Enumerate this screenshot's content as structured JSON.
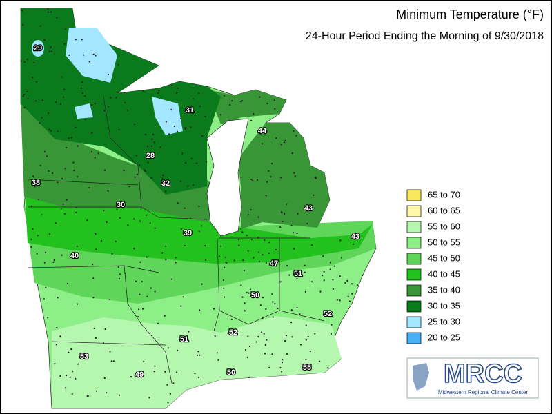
{
  "title": "Minimum Temperature (°F)",
  "subtitle": "24-Hour Period Ending the Morning of 9/30/2018",
  "legend": [
    {
      "label": "65 to 70",
      "color": "#f7e85c"
    },
    {
      "label": "60 to 65",
      "color": "#fdf7a8"
    },
    {
      "label": "55 to 60",
      "color": "#b6f7b0"
    },
    {
      "label": "50 to 55",
      "color": "#8eee88"
    },
    {
      "label": "45 to 50",
      "color": "#5fd65a"
    },
    {
      "label": "40 to 45",
      "color": "#22c11e"
    },
    {
      "label": "35 to 40",
      "color": "#389636"
    },
    {
      "label": "30 to 35",
      "color": "#0b7a1c"
    },
    {
      "label": "25 to 30",
      "color": "#a2e6ff"
    },
    {
      "label": "20 to 25",
      "color": "#4ab0f5"
    }
  ],
  "station_labels": [
    "29",
    "31",
    "44",
    "28",
    "38",
    "32",
    "30",
    "43",
    "39",
    "43",
    "40",
    "47",
    "51",
    "50",
    "52",
    "52",
    "51",
    "53",
    "49",
    "50",
    "55"
  ],
  "logo": {
    "name": "MRCC",
    "subtitle": "Midwestern Regional Climate Center"
  }
}
